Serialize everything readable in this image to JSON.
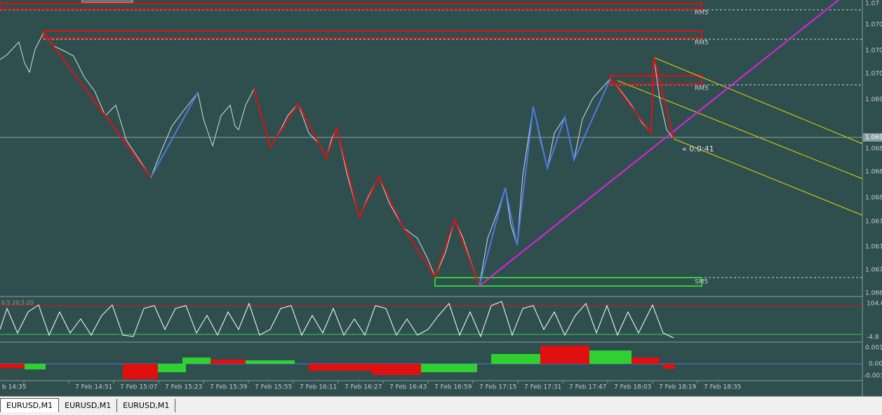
{
  "levels": [
    "RM5",
    "RM5",
    "RM5",
    "SM5"
  ],
  "timer": "« 0:0:41",
  "price_axis": {
    "labels": [
      "1.07",
      "1.070",
      "1.070",
      "1.070",
      "1.069",
      "1.068",
      "1.068",
      "1.068",
      "1.067",
      "1.067",
      "1.067",
      "1.066"
    ],
    "current": "1.069"
  },
  "oscillator": {
    "name": "0.5.20.5.20",
    "labels": [
      "104.6",
      "-4.8"
    ]
  },
  "histogram": {
    "labels": [
      "0.001",
      "0.00",
      "-0.001"
    ]
  },
  "time_axis": [
    "b 14:35",
    "7 Feb 14:51",
    "7 Feb 15:07",
    "7 Feb 15:23",
    "7 Feb 15:39",
    "7 Feb 15:55",
    "7 Feb 16:11",
    "7 Feb 16:27",
    "7 Feb 16:43",
    "7 Feb 16:59",
    "7 Feb 17:15",
    "7 Feb 17:31",
    "7 Feb 17:47",
    "7 Feb 18:03",
    "7 Feb 18:19",
    "7 Feb 18:35"
  ],
  "tabs": [
    "EURUSD,M1",
    "EURUSD,M1",
    "EURUSD,M1"
  ]
}
